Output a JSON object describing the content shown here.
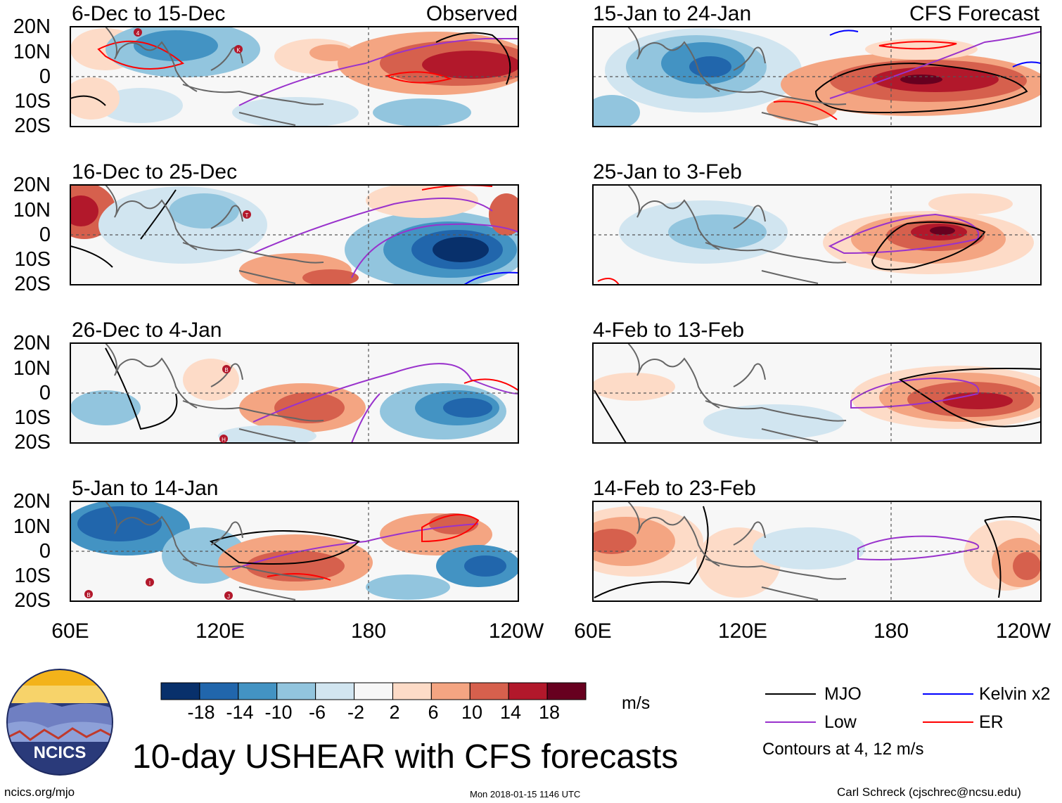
{
  "figure": {
    "title": "10-day USHEAR with CFS forecasts",
    "units": "m/s",
    "contour_note": "Contours at 4, 12 m/s",
    "footer_left": "ncics.org/mjo",
    "footer_center": "Mon 2018-01-15 1146 UTC",
    "footer_right": "Carl Schreck (cjschrec@ncsu.edu)",
    "logo_text": "NCICS"
  },
  "left_column_label": "Observed",
  "right_column_label": "CFS Forecast",
  "panels_left": [
    {
      "period": "6-Dec to 15-Dec"
    },
    {
      "period": "16-Dec to 25-Dec"
    },
    {
      "period": "26-Dec to 4-Jan"
    },
    {
      "period": "5-Jan to 14-Jan"
    }
  ],
  "panels_right": [
    {
      "period": "15-Jan to 24-Jan"
    },
    {
      "period": "25-Jan to 3-Feb"
    },
    {
      "period": "4-Feb to 13-Feb"
    },
    {
      "period": "14-Feb to 23-Feb"
    }
  ],
  "lat_labels": [
    "20N",
    "10N",
    "0",
    "10S",
    "20S"
  ],
  "lon_labels": [
    "60E",
    "120E",
    "180",
    "120W"
  ],
  "colorbar": {
    "labels": [
      "-18",
      "-14",
      "-10",
      "-6",
      "-2",
      "2",
      "6",
      "10",
      "14",
      "18"
    ],
    "colors": [
      "#08306b",
      "#2166ac",
      "#4393c3",
      "#92c5de",
      "#d1e5f0",
      "#f7f7f7",
      "#fddbc7",
      "#f4a582",
      "#d6604d",
      "#b2182b",
      "#67001f"
    ]
  },
  "legend": {
    "items": [
      {
        "label": "MJO",
        "color": "#000000"
      },
      {
        "label": "Kelvin x2",
        "color": "#0000ff"
      },
      {
        "label": "Low",
        "color": "#9932cc"
      },
      {
        "label": "ER",
        "color": "#ff0000"
      }
    ]
  },
  "storm_markers": {
    "p1": [
      "4",
      "K"
    ],
    "p2": [
      "T"
    ],
    "p3": [
      "B",
      "H"
    ],
    "p4": [
      "B",
      "I",
      "J"
    ]
  }
}
